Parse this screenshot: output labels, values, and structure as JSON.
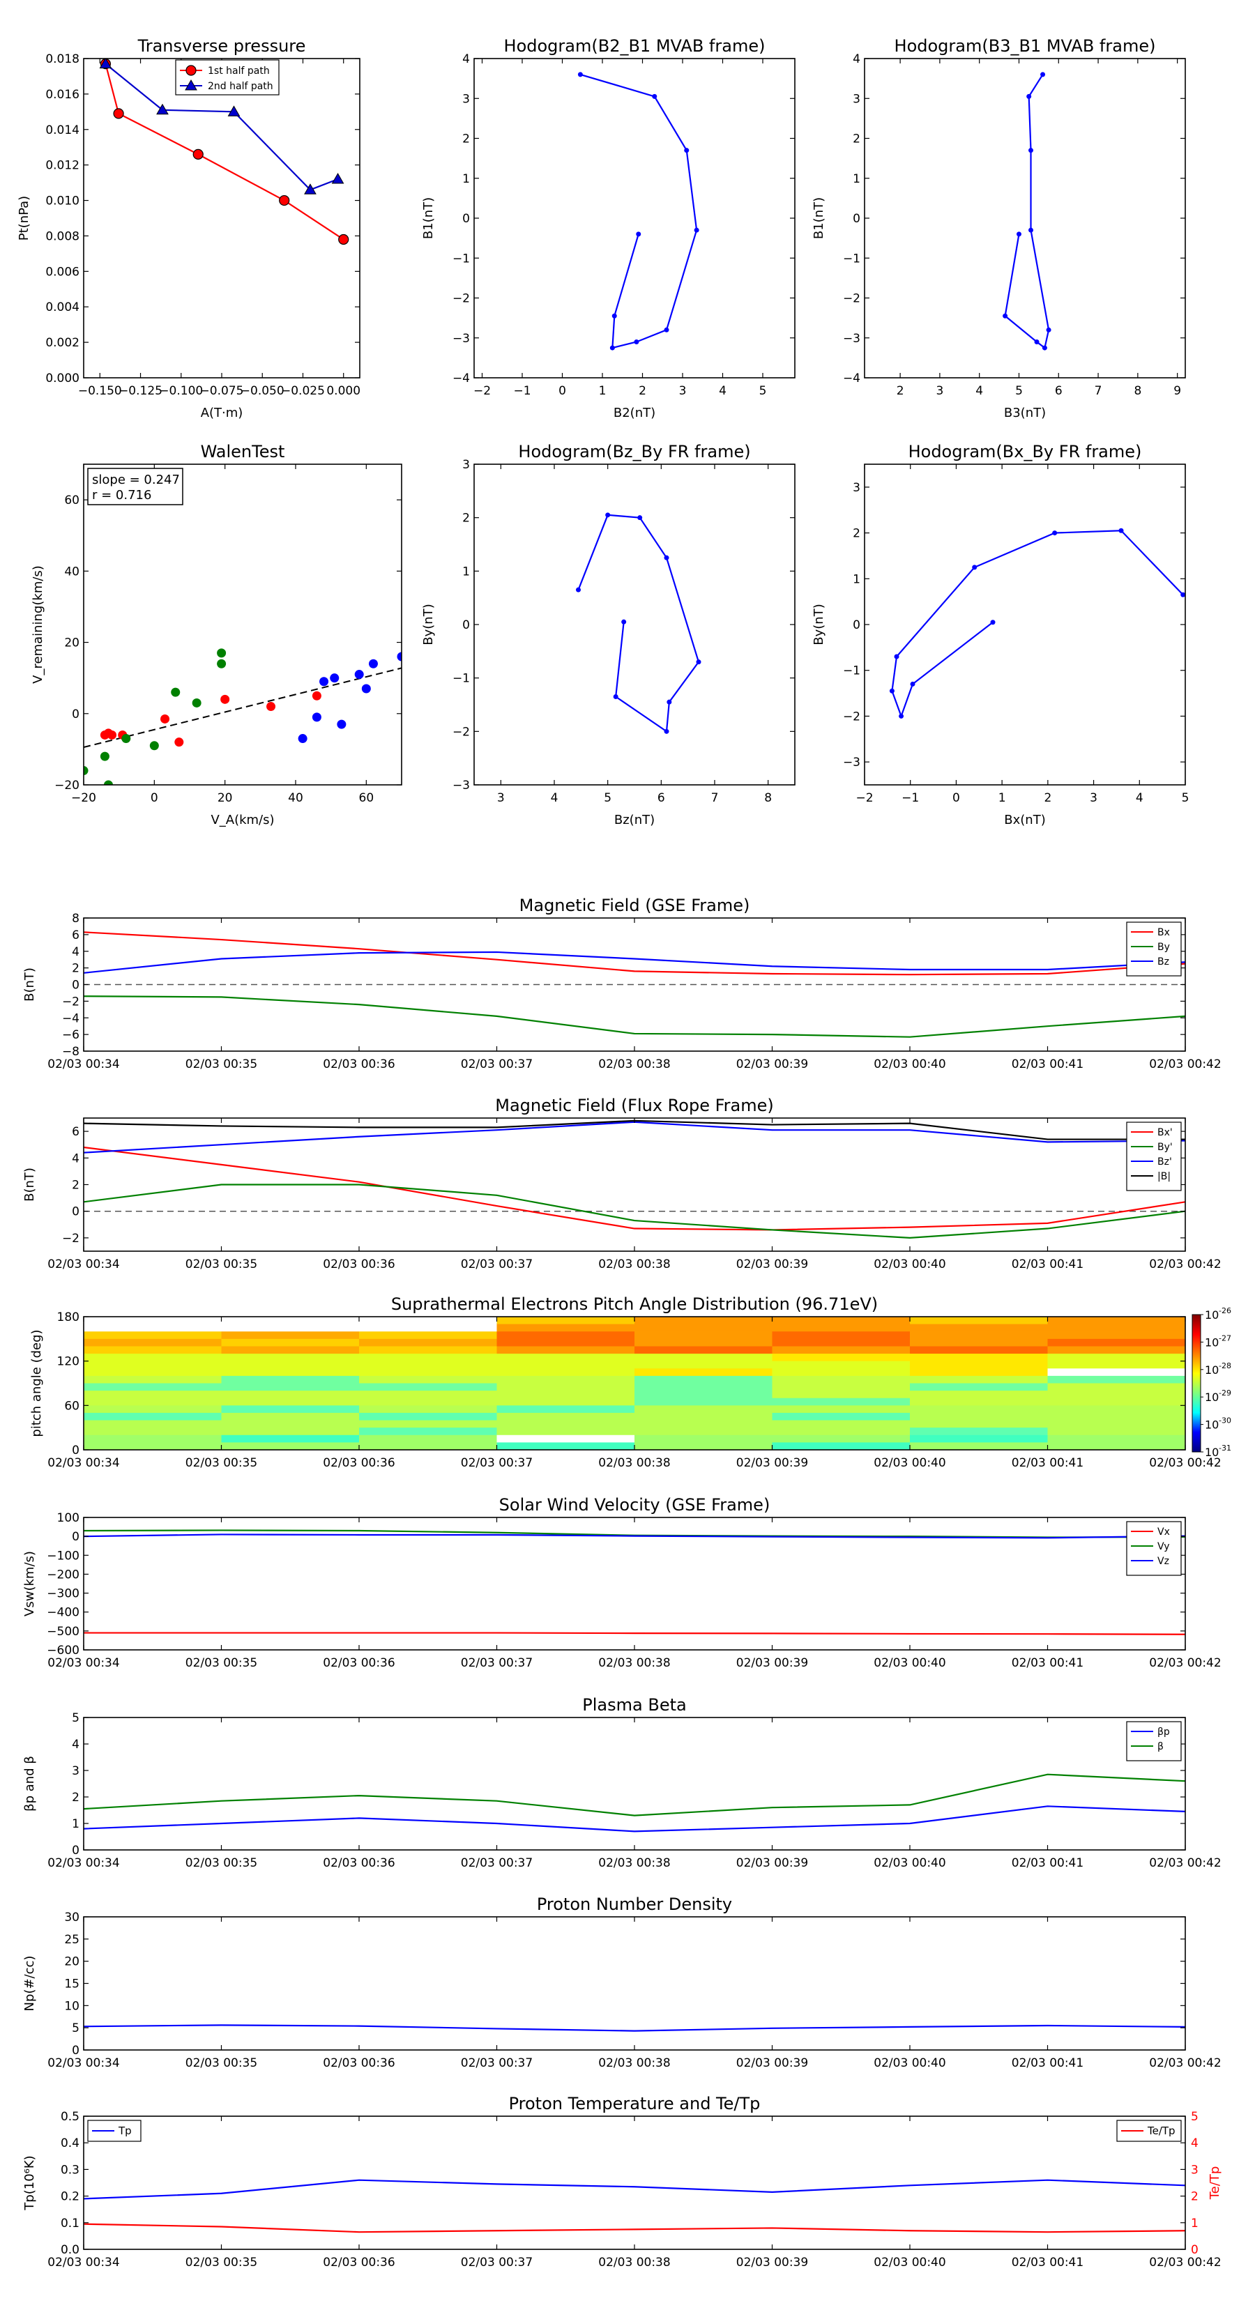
{
  "chart_data": [
    {
      "type": "line",
      "title": "Transverse pressure",
      "xlabel": "A(T·m)",
      "ylabel": "Pt(nPa)",
      "xlim": [
        -0.16,
        0.01
      ],
      "ylim": [
        0,
        0.018
      ],
      "xticks": [
        -0.15,
        -0.125,
        -0.1,
        -0.075,
        -0.05,
        -0.025,
        0
      ],
      "xtick_labels": [
        "−0.150",
        "−0.125",
        "−0.100",
        "−0.075",
        "−0.050",
        "−0.025",
        "0.000"
      ],
      "yticks": [
        0,
        0.002,
        0.004,
        0.006,
        0.008,
        0.01,
        0.012,
        0.014,
        0.016,
        0.018
      ],
      "ytick_labels": [
        "0.000",
        "0.002",
        "0.004",
        "0.006",
        "0.008",
        "0.010",
        "0.012",
        "0.014",
        "0.016",
        "0.018"
      ],
      "legend": "top-center",
      "series": [
        {
          "name": "1st half path",
          "color": "#ff0000",
          "marker": "circle",
          "x": [
            -0.1465,
            -0.1385,
            -0.0895,
            -0.0365,
            0.0
          ],
          "y": [
            0.0177,
            0.0149,
            0.0126,
            0.01,
            0.0078
          ]
        },
        {
          "name": "2nd half path",
          "color": "#0000cc",
          "marker": "triangle",
          "x": [
            -0.1465,
            -0.1115,
            -0.0675,
            -0.0205,
            -0.0035
          ],
          "y": [
            0.0177,
            0.0151,
            0.015,
            0.0106,
            0.0112
          ]
        }
      ]
    },
    {
      "type": "line",
      "title": "Hodogram(B2_B1 MVAB frame)",
      "xlabel": "B2(nT)",
      "ylabel": "B1(nT)",
      "xlim": [
        -2.2,
        5.8
      ],
      "ylim": [
        -4,
        4
      ],
      "xticks": [
        -2,
        -1,
        0,
        1,
        2,
        3,
        4,
        5
      ],
      "xtick_labels": [
        "−2",
        "−1",
        "0",
        "1",
        "2",
        "3",
        "4",
        "5"
      ],
      "yticks": [
        -4,
        -3,
        -2,
        -1,
        0,
        1,
        2,
        3,
        4
      ],
      "ytick_labels": [
        "−4",
        "−3",
        "−2",
        "−1",
        "0",
        "1",
        "2",
        "3",
        "4"
      ],
      "series": [
        {
          "color": "#0000ff",
          "x": [
            1.9,
            1.3,
            1.25,
            1.85,
            2.6,
            3.35,
            3.1,
            2.3,
            0.45
          ],
          "y": [
            -0.4,
            -2.45,
            -3.25,
            -3.1,
            -2.8,
            -0.3,
            1.7,
            3.05,
            3.6
          ]
        }
      ]
    },
    {
      "type": "line",
      "title": "Hodogram(B3_B1 MVAB frame)",
      "xlabel": "B3(nT)",
      "ylabel": "B1(nT)",
      "xlim": [
        1.1,
        9.2
      ],
      "ylim": [
        -4,
        4
      ],
      "xticks": [
        2,
        3,
        4,
        5,
        6,
        7,
        8,
        9
      ],
      "xtick_labels": [
        "2",
        "3",
        "4",
        "5",
        "6",
        "7",
        "8",
        "9"
      ],
      "yticks": [
        -4,
        -3,
        -2,
        -1,
        0,
        1,
        2,
        3,
        4
      ],
      "ytick_labels": [
        "−4",
        "−3",
        "−2",
        "−1",
        "0",
        "1",
        "2",
        "3",
        "4"
      ],
      "series": [
        {
          "color": "#0000ff",
          "x": [
            5.0,
            4.65,
            5.45,
            5.65,
            5.75,
            5.3,
            5.3,
            5.25,
            5.6
          ],
          "y": [
            -0.4,
            -2.45,
            -3.1,
            -3.25,
            -2.8,
            -0.3,
            1.7,
            3.05,
            3.6
          ]
        }
      ]
    },
    {
      "type": "scatter",
      "title": "WalenTest",
      "xlabel": "V_A(km/s)",
      "ylabel": "V_remaining(km/s)",
      "xlim": [
        -20,
        70
      ],
      "ylim": [
        -20,
        70
      ],
      "xticks": [
        -20,
        0,
        20,
        40,
        60
      ],
      "xtick_labels": [
        "−20",
        "0",
        "20",
        "40",
        "60"
      ],
      "yticks": [
        -20,
        0,
        20,
        40,
        60
      ],
      "ytick_labels": [
        "−20",
        "0",
        "20",
        "40",
        "60"
      ],
      "annotation": [
        "slope = 0.247",
        "r = 0.716"
      ],
      "fit_line": {
        "slope": 0.247,
        "intercept": -4.5,
        "color": "#000000",
        "style": "dashed"
      },
      "series": [
        {
          "color": "#ff0000",
          "x": [
            -14,
            -13,
            -12,
            -9,
            3,
            7,
            20,
            33,
            46
          ],
          "y": [
            -6,
            -5.5,
            -6,
            -6,
            -1.5,
            -8,
            4,
            2,
            5
          ]
        },
        {
          "color": "#008000",
          "x": [
            -20,
            -14,
            -13,
            -8,
            0,
            6,
            12,
            19,
            19
          ],
          "y": [
            -16,
            -12,
            -20,
            -7,
            -9,
            6,
            3,
            14,
            17
          ]
        },
        {
          "color": "#0000ff",
          "x": [
            42,
            46,
            48,
            51,
            53,
            58,
            60,
            62,
            70
          ],
          "y": [
            -7,
            -1,
            9,
            10,
            -3,
            11,
            7,
            14,
            16
          ]
        }
      ]
    },
    {
      "type": "line",
      "title": "Hodogram(Bz_By FR frame)",
      "xlabel": "Bz(nT)",
      "ylabel": "By(nT)",
      "xlim": [
        2.5,
        8.5
      ],
      "ylim": [
        -3,
        3
      ],
      "xticks": [
        3,
        4,
        5,
        6,
        7,
        8
      ],
      "xtick_labels": [
        "3",
        "4",
        "5",
        "6",
        "7",
        "8"
      ],
      "yticks": [
        -3,
        -2,
        -1,
        0,
        1,
        2,
        3
      ],
      "ytick_labels": [
        "−3",
        "−2",
        "−1",
        "0",
        "1",
        "2",
        "3"
      ],
      "series": [
        {
          "color": "#0000ff",
          "x": [
            5.3,
            5.15,
            6.1,
            6.15,
            6.7,
            6.1,
            5.6,
            5.0,
            4.45
          ],
          "y": [
            0.05,
            -1.35,
            -2.0,
            -1.45,
            -0.7,
            1.25,
            2.0,
            2.05,
            0.65
          ]
        }
      ]
    },
    {
      "type": "line",
      "title": "Hodogram(Bx_By FR frame)",
      "xlabel": "Bx(nT)",
      "ylabel": "By(nT)",
      "xlim": [
        -2,
        5
      ],
      "ylim": [
        -3.5,
        3.5
      ],
      "xticks": [
        -2,
        -1,
        0,
        1,
        2,
        3,
        4,
        5
      ],
      "xtick_labels": [
        "−2",
        "−1",
        "0",
        "1",
        "2",
        "3",
        "4",
        "5"
      ],
      "yticks": [
        -3,
        -2,
        -1,
        0,
        1,
        2,
        3
      ],
      "ytick_labels": [
        "−3",
        "−2",
        "−1",
        "0",
        "1",
        "2",
        "3"
      ],
      "series": [
        {
          "color": "#0000ff",
          "x": [
            0.8,
            -0.95,
            -1.2,
            -1.4,
            -1.3,
            0.4,
            2.15,
            3.6,
            4.95
          ],
          "y": [
            0.05,
            -1.3,
            -2.0,
            -1.45,
            -0.7,
            1.25,
            2.0,
            2.05,
            0.65
          ]
        }
      ]
    },
    {
      "type": "line",
      "title": "Magnetic Field (GSE Frame)",
      "ylabel": "B(nT)",
      "ylim": [
        -8,
        8
      ],
      "yticks": [
        -8,
        -6,
        -4,
        -2,
        0,
        2,
        4,
        6,
        8
      ],
      "ytick_labels": [
        "−8",
        "−6",
        "−4",
        "−2",
        "0",
        "2",
        "4",
        "6",
        "8"
      ],
      "categories": [
        "02/03 00:34",
        "02/03 00:35",
        "02/03 00:36",
        "02/03 00:37",
        "02/03 00:38",
        "02/03 00:39",
        "02/03 00:40",
        "02/03 00:41",
        "02/03 00:42"
      ],
      "zero_line": true,
      "legend": "top-right",
      "series": [
        {
          "name": "Bx",
          "color": "#ff0000",
          "values": [
            6.3,
            5.4,
            4.3,
            3.0,
            1.6,
            1.3,
            1.2,
            1.3,
            2.5
          ]
        },
        {
          "name": "By",
          "color": "#008000",
          "values": [
            -1.4,
            -1.5,
            -2.4,
            -3.8,
            -5.9,
            -6.0,
            -6.3,
            -5.0,
            -3.8
          ]
        },
        {
          "name": "Bz",
          "color": "#0000ff",
          "values": [
            1.4,
            3.1,
            3.8,
            3.9,
            3.1,
            2.2,
            1.8,
            1.8,
            2.7
          ]
        }
      ]
    },
    {
      "type": "line",
      "title": "Magnetic Field (Flux Rope Frame)",
      "ylabel": "B(nT)",
      "ylim": [
        -3,
        7
      ],
      "yticks": [
        -2,
        0,
        2,
        4,
        6
      ],
      "ytick_labels": [
        "−2",
        "0",
        "2",
        "4",
        "6"
      ],
      "categories": [
        "02/03 00:34",
        "02/03 00:35",
        "02/03 00:36",
        "02/03 00:37",
        "02/03 00:38",
        "02/03 00:39",
        "02/03 00:40",
        "02/03 00:41",
        "02/03 00:42"
      ],
      "zero_line": true,
      "legend": "top-right",
      "series": [
        {
          "name": "Bx'",
          "color": "#ff0000",
          "values": [
            4.8,
            3.5,
            2.2,
            0.4,
            -1.3,
            -1.4,
            -1.2,
            -0.9,
            0.7
          ]
        },
        {
          "name": "By'",
          "color": "#008000",
          "values": [
            0.7,
            2.0,
            2.0,
            1.2,
            -0.7,
            -1.4,
            -2.0,
            -1.3,
            0.0
          ]
        },
        {
          "name": "Bz'",
          "color": "#0000ff",
          "values": [
            4.4,
            5.0,
            5.6,
            6.1,
            6.7,
            6.1,
            6.1,
            5.2,
            5.3
          ]
        },
        {
          "name": "|B|",
          "color": "#000000",
          "values": [
            6.6,
            6.4,
            6.3,
            6.3,
            6.8,
            6.5,
            6.6,
            5.4,
            5.4
          ]
        }
      ]
    },
    {
      "type": "heatmap",
      "title": "Suprathermal Electrons Pitch Angle Distribution (96.71eV)",
      "ylabel": "pitch angle (deg)",
      "ylim": [
        0,
        180
      ],
      "yticks": [
        0,
        60,
        120,
        180
      ],
      "ytick_labels": [
        "0",
        "60",
        "120",
        "180"
      ],
      "categories": [
        "02/03 00:34",
        "02/03 00:35",
        "02/03 00:36",
        "02/03 00:37",
        "02/03 00:38",
        "02/03 00:39",
        "02/03 00:40",
        "02/03 00:41",
        "02/03 00:42"
      ],
      "colorbar": {
        "scale": "log",
        "min_exp": -31,
        "max_exp": -26,
        "tick_labels": [
          "10",
          "10",
          "10",
          "10",
          "10",
          "10"
        ],
        "tick_exponents": [
          "-26",
          "-27",
          "-28",
          "-29",
          "-30",
          "-31"
        ]
      },
      "cmap": [
        "#00007f",
        "#0000ff",
        "#00ffff",
        "#7fff7f",
        "#ffff00",
        "#ff7f00",
        "#ff0000",
        "#7f0000"
      ]
    },
    {
      "type": "line",
      "title": "Solar Wind Velocity (GSE Frame)",
      "ylabel": "Vsw(km/s)",
      "ylim": [
        -600,
        100
      ],
      "yticks": [
        -600,
        -500,
        -400,
        -300,
        -200,
        -100,
        0,
        100
      ],
      "ytick_labels": [
        "−600",
        "−500",
        "−400",
        "−300",
        "−200",
        "−100",
        "0",
        "100"
      ],
      "categories": [
        "02/03 00:34",
        "02/03 00:35",
        "02/03 00:36",
        "02/03 00:37",
        "02/03 00:38",
        "02/03 00:39",
        "02/03 00:40",
        "02/03 00:41",
        "02/03 00:42"
      ],
      "legend": "top-right",
      "series": [
        {
          "name": "Vx",
          "color": "#ff0000",
          "values": [
            -510,
            -510,
            -510,
            -510,
            -512,
            -513,
            -515,
            -516,
            -518
          ]
        },
        {
          "name": "Vy",
          "color": "#008000",
          "values": [
            30,
            32,
            30,
            20,
            5,
            2,
            0,
            -5,
            -3
          ]
        },
        {
          "name": "Vz",
          "color": "#0000ff",
          "values": [
            0,
            10,
            8,
            8,
            2,
            -2,
            -5,
            -8,
            2
          ]
        }
      ]
    },
    {
      "type": "line",
      "title": "Plasma Beta",
      "ylabel": "βp and β",
      "ylim": [
        0,
        5
      ],
      "yticks": [
        0,
        1,
        2,
        3,
        4,
        5
      ],
      "ytick_labels": [
        "0",
        "1",
        "2",
        "3",
        "4",
        "5"
      ],
      "categories": [
        "02/03 00:34",
        "02/03 00:35",
        "02/03 00:36",
        "02/03 00:37",
        "02/03 00:38",
        "02/03 00:39",
        "02/03 00:40",
        "02/03 00:41",
        "02/03 00:42"
      ],
      "legend": "top-right",
      "series": [
        {
          "name": "βp",
          "color": "#0000ff",
          "values": [
            0.8,
            1.0,
            1.2,
            1.0,
            0.7,
            0.85,
            1.0,
            1.65,
            1.45
          ]
        },
        {
          "name": "β",
          "color": "#008000",
          "values": [
            1.55,
            1.85,
            2.05,
            1.85,
            1.3,
            1.6,
            1.7,
            2.85,
            2.6
          ]
        }
      ]
    },
    {
      "type": "line",
      "title": "Proton Number Density",
      "ylabel": "Np(#/cc)",
      "ylim": [
        0,
        30
      ],
      "yticks": [
        0,
        5,
        10,
        15,
        20,
        25,
        30
      ],
      "ytick_labels": [
        "0",
        "5",
        "10",
        "15",
        "20",
        "25",
        "30"
      ],
      "categories": [
        "02/03 00:34",
        "02/03 00:35",
        "02/03 00:36",
        "02/03 00:37",
        "02/03 00:38",
        "02/03 00:39",
        "02/03 00:40",
        "02/03 00:41",
        "02/03 00:42"
      ],
      "series": [
        {
          "color": "#0000ff",
          "values": [
            5.3,
            5.6,
            5.4,
            4.8,
            4.3,
            4.9,
            5.2,
            5.5,
            5.2
          ]
        }
      ]
    },
    {
      "type": "line",
      "title": "Proton Temperature and Te/Tp",
      "ylabel": "Tp(10⁶K)",
      "ylabel_right": "Te/Tp",
      "ylim": [
        0,
        0.5
      ],
      "ylim_right": [
        0,
        5
      ],
      "yticks": [
        0,
        0.1,
        0.2,
        0.3,
        0.4,
        0.5
      ],
      "ytick_labels": [
        "0.0",
        "0.1",
        "0.2",
        "0.3",
        "0.4",
        "0.5"
      ],
      "yticks_right": [
        0,
        1,
        2,
        3,
        4,
        5
      ],
      "ytick_labels_right": [
        "0",
        "1",
        "2",
        "3",
        "4",
        "5"
      ],
      "categories": [
        "02/03 00:34",
        "02/03 00:35",
        "02/03 00:36",
        "02/03 00:37",
        "02/03 00:38",
        "02/03 00:39",
        "02/03 00:40",
        "02/03 00:41",
        "02/03 00:42"
      ],
      "series": [
        {
          "name": "Tp",
          "color": "#0000ff",
          "axis": "left",
          "values": [
            0.19,
            0.21,
            0.26,
            0.245,
            0.235,
            0.215,
            0.24,
            0.26,
            0.24
          ]
        },
        {
          "name": "Te/Tp",
          "color": "#ff0000",
          "axis": "right",
          "values": [
            0.95,
            0.85,
            0.65,
            0.7,
            0.75,
            0.8,
            0.7,
            0.65,
            0.7
          ]
        }
      ]
    }
  ]
}
